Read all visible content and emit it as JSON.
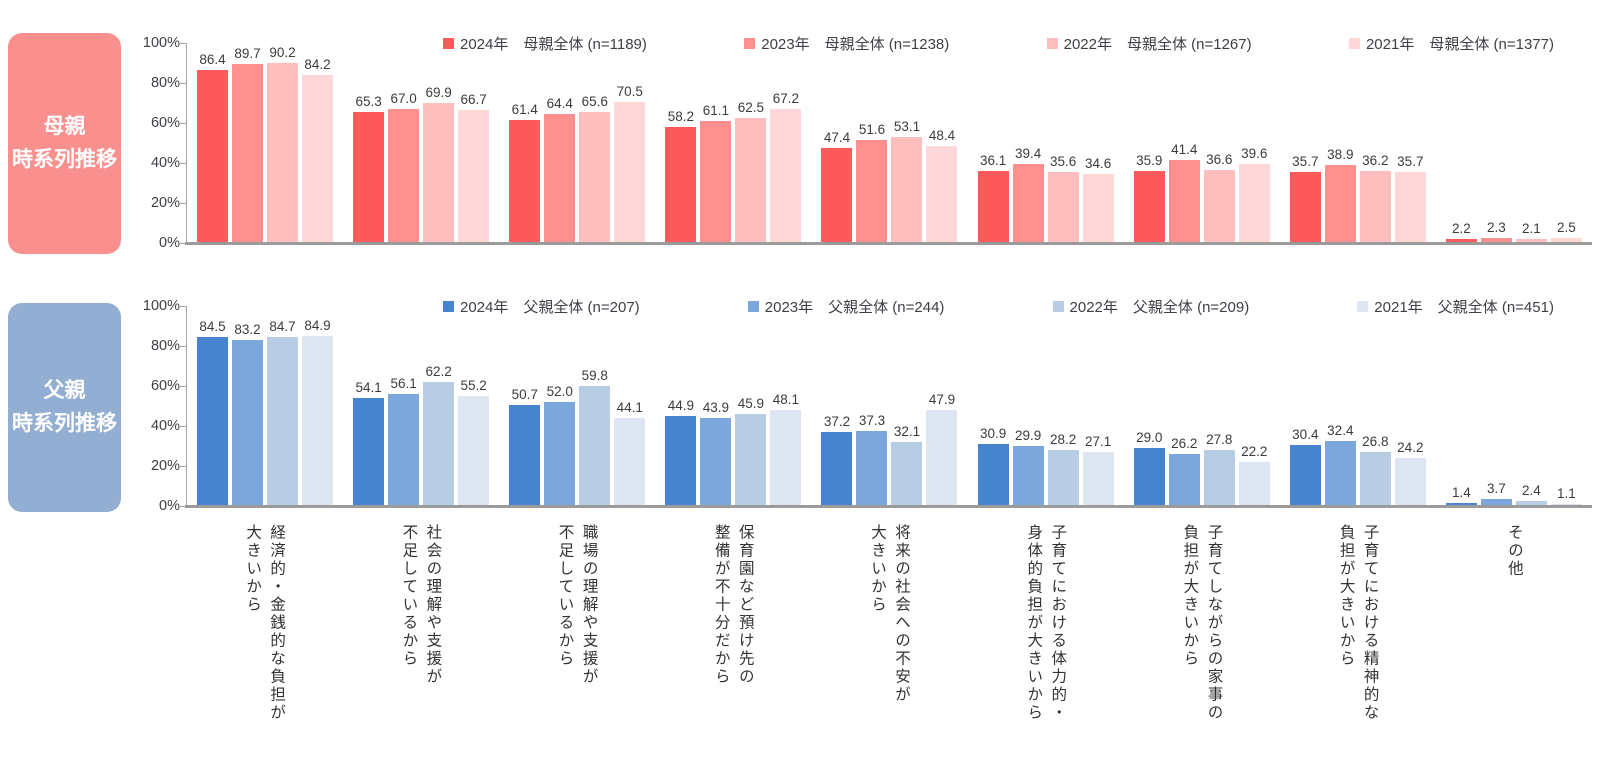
{
  "chart_data": [
    {
      "type": "bar",
      "group_label": "母親\n時系列推移",
      "group_label_bg": "#f9908e",
      "ylim": [
        0,
        100
      ],
      "y_ticks": [
        "0%",
        "20%",
        "40%",
        "60%",
        "80%",
        "100%"
      ],
      "legend_position": "top",
      "categories": [
        "経済的・金銭的な負担が\n大きいから",
        "社会の理解や支援が\n不足しているから",
        "職場の理解や支援が\n不足しているから",
        "保育園など預け先の\n整備が不十分だから",
        "将来の社会への不安が\n大きいから",
        "子育てにおける体力的・\n身体的負担が大きいから",
        "子育てしながらの家事の\n負担が大きいから",
        "子育てにおける精神的な\n負担が大きいから",
        "その他"
      ],
      "series": [
        {
          "name": "2024年　母親全体 (n=1189)",
          "color": "#fc5a5a",
          "values": [
            86.4,
            65.3,
            61.4,
            58.2,
            47.4,
            36.1,
            35.9,
            35.7,
            2.2
          ]
        },
        {
          "name": "2023年　母親全体 (n=1238)",
          "color": "#fd8f8f",
          "values": [
            89.7,
            67.0,
            64.4,
            61.1,
            51.6,
            39.4,
            41.4,
            38.9,
            2.3
          ]
        },
        {
          "name": "2022年　母親全体 (n=1267)",
          "color": "#febebe",
          "values": [
            90.2,
            69.9,
            65.6,
            62.5,
            53.1,
            35.6,
            36.6,
            36.2,
            2.1
          ]
        },
        {
          "name": "2021年　母親全体 (n=1377)",
          "color": "#fed8d8",
          "values": [
            84.2,
            66.7,
            70.5,
            67.2,
            48.4,
            34.6,
            39.6,
            35.7,
            2.5
          ]
        }
      ]
    },
    {
      "type": "bar",
      "group_label": "父親\n時系列推移",
      "group_label_bg": "#93aed3",
      "ylim": [
        0,
        100
      ],
      "y_ticks": [
        "0%",
        "20%",
        "40%",
        "60%",
        "80%",
        "100%"
      ],
      "legend_position": "top",
      "categories": [
        "経済的・金銭的な負担が\n大きいから",
        "社会の理解や支援が\n不足しているから",
        "職場の理解や支援が\n不足しているから",
        "保育園など預け先の\n整備が不十分だから",
        "将来の社会への不安が\n大きいから",
        "子育てにおける体力的・\n身体的負担が大きいから",
        "子育てしながらの家事の\n負担が大きいから",
        "子育てにおける精神的な\n負担が大きいから",
        "その他"
      ],
      "series": [
        {
          "name": "2024年　父親全体 (n=207)",
          "color": "#4684ce",
          "values": [
            84.5,
            54.1,
            50.7,
            44.9,
            37.2,
            30.9,
            29.0,
            30.4,
            1.4
          ]
        },
        {
          "name": "2023年　父親全体 (n=244)",
          "color": "#7ba7dc",
          "values": [
            83.2,
            56.1,
            52.0,
            43.9,
            37.3,
            29.9,
            26.2,
            32.4,
            3.7
          ]
        },
        {
          "name": "2022年　父親全体 (n=209)",
          "color": "#b8cce4",
          "values": [
            84.7,
            62.2,
            59.8,
            45.9,
            32.1,
            28.2,
            27.8,
            26.8,
            2.4
          ]
        },
        {
          "name": "2021年　父親全体 (n=451)",
          "color": "#dee6f1",
          "values": [
            84.9,
            55.2,
            44.1,
            48.1,
            47.9,
            27.1,
            22.2,
            24.2,
            1.1
          ]
        }
      ]
    }
  ]
}
